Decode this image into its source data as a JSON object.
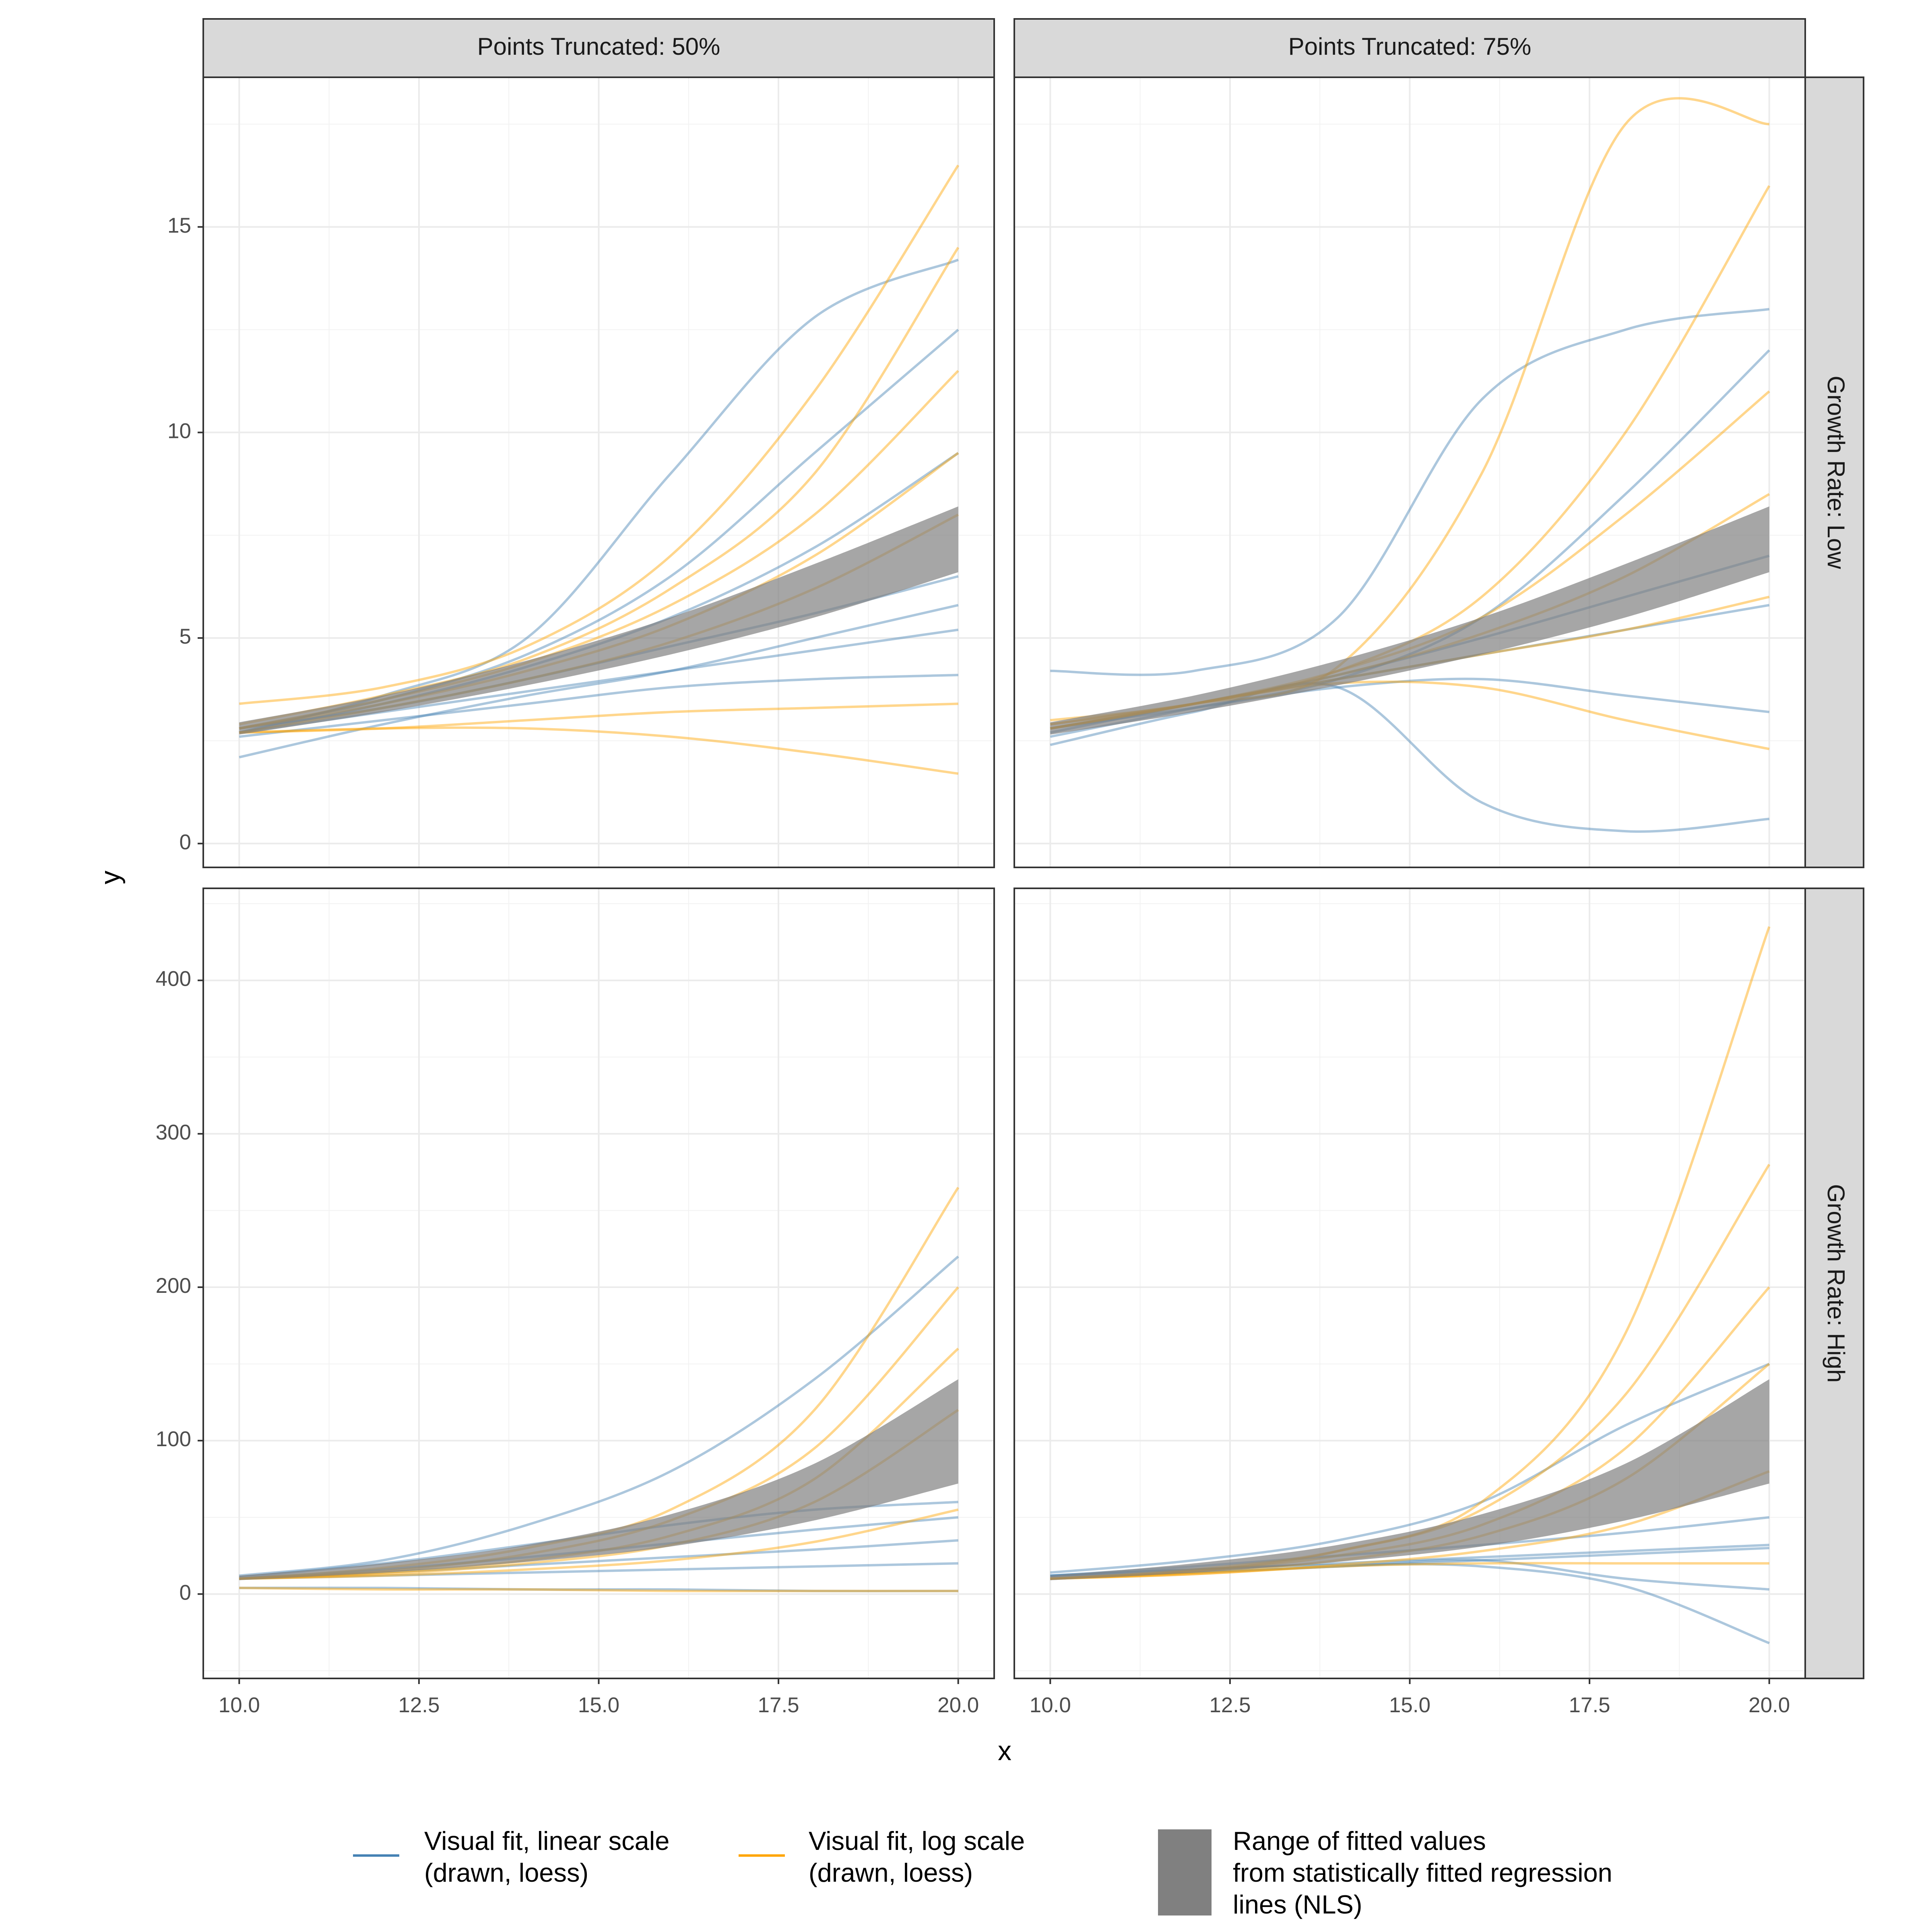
{
  "facets": {
    "columns": [
      "Points Truncated: 50%",
      "Points Truncated: 75%"
    ],
    "rows": [
      "Growth Rate: Low",
      "Growth Rate: High"
    ]
  },
  "x_label": "x",
  "y_label": "y",
  "legend": [
    {
      "label": [
        "Visual fit, linear scale",
        " (drawn, loess)"
      ],
      "color": "#4682b4",
      "shape": "line"
    },
    {
      "label": [
        "Visual fit, log scale",
        " (drawn, loess)"
      ],
      "color": "#ffa500",
      "shape": "line"
    },
    {
      "label": [
        "Range of fitted values",
        " from statistically fitted regression",
        " lines (NLS)"
      ],
      "color": "#808080",
      "shape": "box"
    }
  ],
  "chart_data": [
    {
      "type": "line",
      "x": [
        10,
        12,
        14,
        16,
        18,
        20
      ],
      "xlim": [
        9.5,
        20.5
      ],
      "xticks": [
        {
          "value": 10,
          "label": "10.0"
        },
        12.5,
        {
          "value": 15,
          "label": "15.0"
        },
        17.5,
        {
          "value": 20,
          "label": "20.0"
        }
      ],
      "xminor": [
        11.25,
        13.75,
        16.25,
        18.75
      ],
      "ylim": [
        -0.58,
        18.64
      ],
      "yticks": [
        0,
        5,
        10,
        15
      ],
      "yminor": [
        2.5,
        7.5,
        12.5,
        17.5
      ],
      "grid": true,
      "series": [
        {
          "color": "#4682b4",
          "values": [
            2.7,
            3.6,
            5.0,
            9.0,
            12.8,
            14.2
          ]
        },
        {
          "color": "#4682b4",
          "values": [
            2.8,
            3.5,
            4.6,
            6.5,
            9.5,
            12.5
          ]
        },
        {
          "color": "#4682b4",
          "values": [
            2.7,
            3.4,
            4.3,
            5.5,
            7.2,
            9.5
          ]
        },
        {
          "color": "#4682b4",
          "values": [
            2.8,
            3.3,
            4.0,
            4.8,
            5.6,
            6.5
          ]
        },
        {
          "color": "#4682b4",
          "values": [
            2.7,
            3.2,
            3.7,
            4.2,
            4.7,
            5.2
          ]
        },
        {
          "color": "#4682b4",
          "values": [
            2.6,
            3.0,
            3.4,
            3.8,
            4.0,
            4.1
          ]
        },
        {
          "color": "#4682b4",
          "values": [
            2.1,
            2.9,
            3.6,
            4.2,
            5.0,
            5.8
          ]
        },
        {
          "color": "#ffa500",
          "values": [
            3.4,
            3.8,
            4.8,
            7.0,
            11,
            16.5
          ]
        },
        {
          "color": "#ffa500",
          "values": [
            2.9,
            3.6,
            4.5,
            6.2,
            9.0,
            14.5
          ]
        },
        {
          "color": "#ffa500",
          "values": [
            2.8,
            3.5,
            4.4,
            5.8,
            8.0,
            11.5
          ]
        },
        {
          "color": "#ffa500",
          "values": [
            2.8,
            3.4,
            4.2,
            5.3,
            7.0,
            9.5
          ]
        },
        {
          "color": "#ffa500",
          "values": [
            2.7,
            3.3,
            4.0,
            4.9,
            6.2,
            8.0
          ]
        },
        {
          "color": "#ffa500",
          "values": [
            2.7,
            2.8,
            3.0,
            3.2,
            3.3,
            3.4
          ]
        },
        {
          "color": "#ffa500",
          "values": [
            2.7,
            2.8,
            2.8,
            2.6,
            2.2,
            1.7
          ]
        }
      ],
      "ribbon": {
        "color": "#808080",
        "lower": [
          2.65,
          3.2,
          3.85,
          4.6,
          5.5,
          6.6
        ],
        "upper": [
          2.95,
          3.6,
          4.45,
          5.5,
          6.8,
          8.2
        ]
      }
    },
    {
      "type": "line",
      "x": [
        10,
        12,
        14,
        16,
        18,
        20
      ],
      "xlim": [
        9.5,
        20.5
      ],
      "xticks": [
        {
          "value": 10,
          "label": "10.0"
        },
        12.5,
        {
          "value": 15,
          "label": "15.0"
        },
        17.5,
        {
          "value": 20,
          "label": "20.0"
        }
      ],
      "xminor": [
        11.25,
        13.75,
        16.25,
        18.75
      ],
      "ylim": [
        -0.58,
        18.64
      ],
      "yticks": [
        0,
        5,
        10,
        15
      ],
      "yminor": [
        2.5,
        7.5,
        12.5,
        17.5
      ],
      "grid": true,
      "series": [
        {
          "color": "#4682b4",
          "values": [
            4.2,
            4.2,
            5.5,
            10.8,
            12.5,
            13.0
          ]
        },
        {
          "color": "#4682b4",
          "values": [
            2.4,
            3.2,
            3.8,
            1.0,
            0.3,
            0.6
          ]
        },
        {
          "color": "#4682b4",
          "values": [
            2.6,
            3.3,
            4.0,
            5.5,
            8.5,
            12.0
          ]
        },
        {
          "color": "#4682b4",
          "values": [
            2.8,
            3.4,
            4.1,
            5.0,
            6.0,
            7.0
          ]
        },
        {
          "color": "#4682b4",
          "values": [
            2.7,
            3.4,
            4.0,
            4.6,
            5.2,
            5.8
          ]
        },
        {
          "color": "#4682b4",
          "values": [
            2.8,
            3.3,
            3.8,
            4.0,
            3.6,
            3.2
          ]
        },
        {
          "color": "#ffa500",
          "values": [
            3.0,
            3.4,
            4.3,
            9.0,
            17.5,
            17.5
          ]
        },
        {
          "color": "#ffa500",
          "values": [
            2.9,
            3.4,
            4.2,
            6.0,
            10,
            16
          ]
        },
        {
          "color": "#ffa500",
          "values": [
            2.8,
            3.4,
            4.2,
            5.5,
            8.0,
            11.0
          ]
        },
        {
          "color": "#ffa500",
          "values": [
            2.8,
            3.4,
            4.1,
            5.1,
            6.5,
            8.5
          ]
        },
        {
          "color": "#ffa500",
          "values": [
            2.8,
            3.4,
            4.0,
            4.6,
            5.2,
            6.0
          ]
        },
        {
          "color": "#ffa500",
          "values": [
            2.9,
            3.4,
            3.9,
            3.8,
            3.0,
            2.3
          ]
        }
      ],
      "ribbon": {
        "color": "#808080",
        "lower": [
          2.65,
          3.2,
          3.85,
          4.6,
          5.5,
          6.6
        ],
        "upper": [
          2.95,
          3.6,
          4.45,
          5.5,
          6.8,
          8.2
        ]
      }
    },
    {
      "type": "line",
      "x": [
        10,
        12,
        14,
        16,
        18,
        20
      ],
      "xlim": [
        9.5,
        20.5
      ],
      "xticks": [
        {
          "value": 10,
          "label": "10.0"
        },
        12.5,
        {
          "value": 15,
          "label": "15.0"
        },
        17.5,
        {
          "value": 20,
          "label": "20.0"
        }
      ],
      "xminor": [
        11.25,
        13.75,
        16.25,
        18.75
      ],
      "ylim": [
        -55,
        460
      ],
      "yticks": [
        0,
        100,
        200,
        300,
        400
      ],
      "yminor": [
        -50,
        50,
        150,
        250,
        350,
        450
      ],
      "grid": true,
      "series": [
        {
          "color": "#4682b4",
          "values": [
            12,
            22,
            45,
            80,
            140,
            220
          ]
        },
        {
          "color": "#4682b4",
          "values": [
            11,
            20,
            32,
            45,
            55,
            60
          ]
        },
        {
          "color": "#4682b4",
          "values": [
            10,
            16,
            24,
            33,
            42,
            50
          ]
        },
        {
          "color": "#4682b4",
          "values": [
            10,
            14,
            19,
            24,
            29,
            35
          ]
        },
        {
          "color": "#4682b4",
          "values": [
            10,
            12,
            14,
            16,
            18,
            20
          ]
        },
        {
          "color": "#4682b4",
          "values": [
            4,
            4,
            3,
            3,
            2,
            2
          ]
        },
        {
          "color": "#ffa500",
          "values": [
            10,
            17,
            30,
            55,
            120,
            265
          ]
        },
        {
          "color": "#ffa500",
          "values": [
            10,
            15,
            26,
            48,
            95,
            200
          ]
        },
        {
          "color": "#ffa500",
          "values": [
            10,
            14,
            22,
            38,
            75,
            160
          ]
        },
        {
          "color": "#ffa500",
          "values": [
            10,
            13,
            20,
            32,
            60,
            120
          ]
        },
        {
          "color": "#ffa500",
          "values": [
            4,
            3,
            3,
            2,
            2,
            2
          ]
        },
        {
          "color": "#ffa500",
          "values": [
            10,
            12,
            16,
            22,
            34,
            55
          ]
        }
      ],
      "ribbon": {
        "color": "#808080",
        "lower": [
          9,
          14,
          21,
          31,
          48,
          72
        ],
        "upper": [
          12,
          20,
          32,
          52,
          85,
          140
        ]
      }
    },
    {
      "type": "line",
      "x": [
        10,
        12,
        14,
        16,
        18,
        20
      ],
      "xlim": [
        9.5,
        20.5
      ],
      "xticks": [
        {
          "value": 10,
          "label": "10.0"
        },
        12.5,
        {
          "value": 15,
          "label": "15.0"
        },
        17.5,
        {
          "value": 20,
          "label": "20.0"
        }
      ],
      "xminor": [
        11.25,
        13.75,
        16.25,
        18.75
      ],
      "ylim": [
        -55,
        460
      ],
      "yticks": [
        0,
        100,
        200,
        300,
        400
      ],
      "yminor": [
        -50,
        50,
        150,
        250,
        350,
        450
      ],
      "grid": true,
      "series": [
        {
          "color": "#4682b4",
          "values": [
            14,
            22,
            35,
            60,
            110,
            150
          ]
        },
        {
          "color": "#4682b4",
          "values": [
            12,
            18,
            25,
            32,
            40,
            50
          ]
        },
        {
          "color": "#4682b4",
          "values": [
            12,
            16,
            20,
            24,
            28,
            32
          ]
        },
        {
          "color": "#4682b4",
          "values": [
            12,
            16,
            19,
            18,
            5,
            -32
          ]
        },
        {
          "color": "#4682b4",
          "values": [
            11,
            14,
            18,
            22,
            26,
            30
          ]
        },
        {
          "color": "#4682b4",
          "values": [
            10,
            14,
            18,
            22,
            10,
            3
          ]
        },
        {
          "color": "#ffa500",
          "values": [
            10,
            15,
            28,
            60,
            170,
            435
          ]
        },
        {
          "color": "#ffa500",
          "values": [
            10,
            16,
            28,
            55,
            130,
            280
          ]
        },
        {
          "color": "#ffa500",
          "values": [
            10,
            15,
            25,
            45,
            95,
            200
          ]
        },
        {
          "color": "#ffa500",
          "values": [
            10,
            14,
            22,
            38,
            75,
            150
          ]
        },
        {
          "color": "#ffa500",
          "values": [
            10,
            13,
            19,
            28,
            45,
            80
          ]
        },
        {
          "color": "#ffa500",
          "values": [
            10,
            13,
            18,
            20,
            20,
            20
          ]
        }
      ],
      "ribbon": {
        "color": "#808080",
        "lower": [
          9,
          14,
          21,
          31,
          48,
          72
        ],
        "upper": [
          12,
          20,
          32,
          52,
          85,
          140
        ]
      }
    }
  ]
}
